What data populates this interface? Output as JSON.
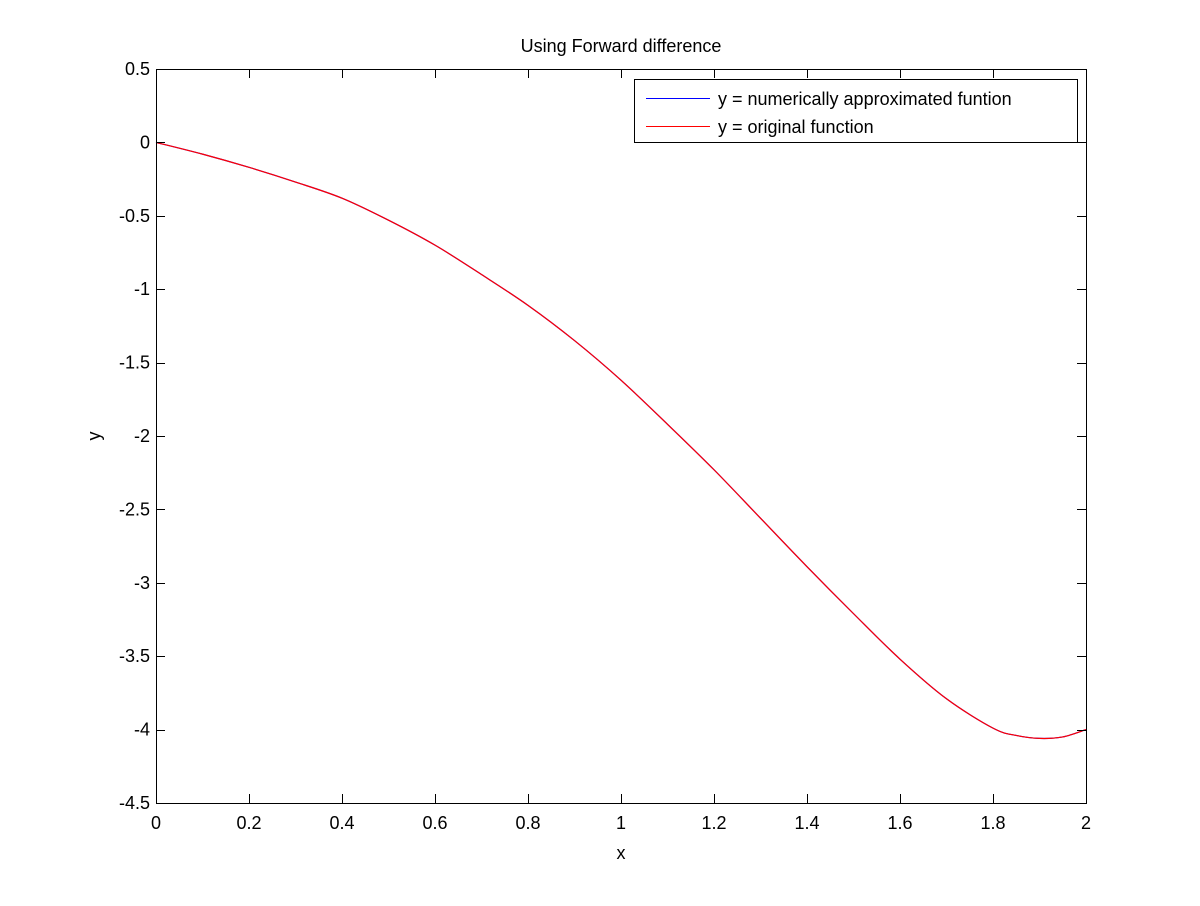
{
  "chart_data": {
    "type": "line",
    "title": "Using Forward difference",
    "xlabel": "x",
    "ylabel": "y",
    "xlim": [
      0,
      2
    ],
    "ylim": [
      -4.5,
      0.5
    ],
    "xticks": [
      0,
      0.2,
      0.4,
      0.6,
      0.8,
      1,
      1.2,
      1.4,
      1.6,
      1.8,
      2
    ],
    "xtick_labels": [
      "0",
      "0.2",
      "0.4",
      "0.6",
      "0.8",
      "1",
      "1.2",
      "1.4",
      "1.6",
      "1.8",
      "2"
    ],
    "yticks": [
      0.5,
      0,
      -0.5,
      -1,
      -1.5,
      -2,
      -2.5,
      -3,
      -3.5,
      -4,
      -4.5
    ],
    "ytick_labels": [
      "0.5",
      "0",
      "-0.5",
      "-1",
      "-1.5",
      "-2",
      "-2.5",
      "-3",
      "-3.5",
      "-4",
      "-4.5"
    ],
    "grid": false,
    "legend_position": "top-right",
    "x": [
      0,
      0.1,
      0.2,
      0.3,
      0.4,
      0.5,
      0.6,
      0.7,
      0.8,
      0.9,
      1.0,
      1.1,
      1.2,
      1.3,
      1.4,
      1.5,
      1.6,
      1.7,
      1.8,
      1.85,
      1.9,
      1.95,
      2.0
    ],
    "series": [
      {
        "name": "y = numerically approximated funtion",
        "color": "#0000ff",
        "values": [
          0,
          -0.08,
          -0.17,
          -0.27,
          -0.38,
          -0.53,
          -0.7,
          -0.9,
          -1.11,
          -1.35,
          -1.62,
          -1.92,
          -2.23,
          -2.56,
          -2.89,
          -3.21,
          -3.52,
          -3.79,
          -3.99,
          -4.04,
          -4.06,
          -4.05,
          -4.0
        ]
      },
      {
        "name": "y = original function",
        "color": "#ff0000",
        "values": [
          0,
          -0.08,
          -0.17,
          -0.27,
          -0.38,
          -0.53,
          -0.7,
          -0.9,
          -1.11,
          -1.35,
          -1.62,
          -1.92,
          -2.23,
          -2.56,
          -2.89,
          -3.21,
          -3.52,
          -3.79,
          -3.99,
          -4.04,
          -4.06,
          -4.05,
          -4.0
        ]
      }
    ]
  }
}
